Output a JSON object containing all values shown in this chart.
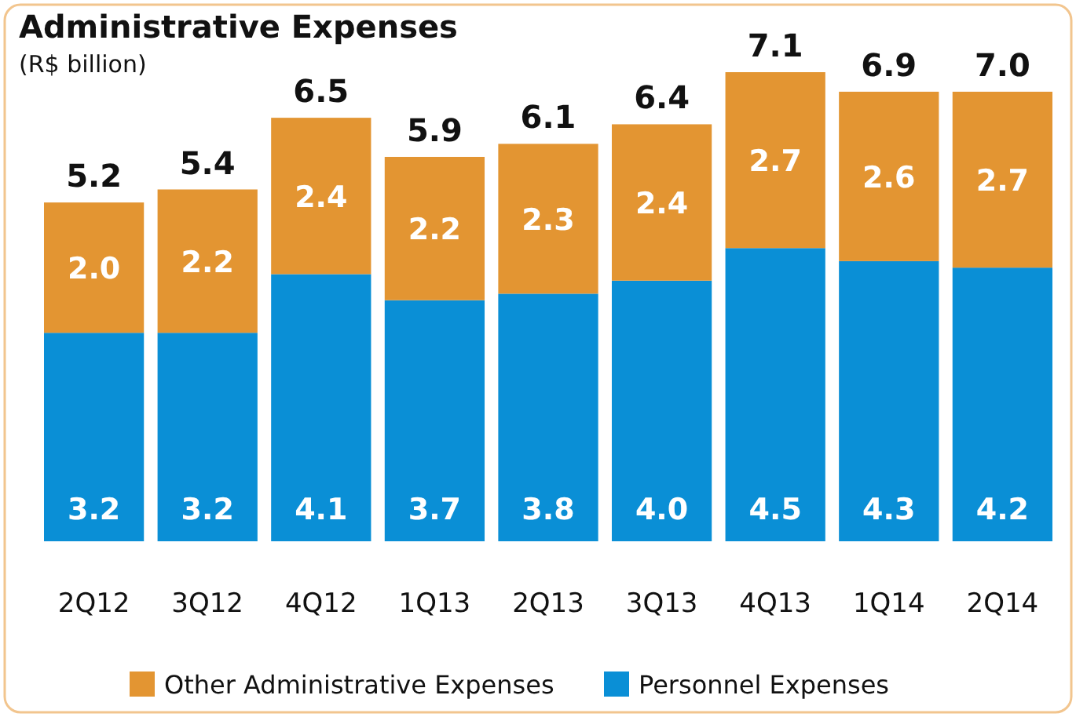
{
  "chart_data": {
    "type": "bar",
    "title": "Administrative Expenses",
    "subtitle": "(R$ billion)",
    "stacked": true,
    "legend": "bottom",
    "categories": [
      "2Q12",
      "3Q12",
      "4Q12",
      "1Q13",
      "2Q13",
      "3Q13",
      "4Q13",
      "1Q14",
      "2Q14"
    ],
    "series": [
      {
        "name": "Personnel Expenses",
        "color": "#0a8fd6",
        "values": [
          3.2,
          3.2,
          4.1,
          3.7,
          3.8,
          4.0,
          4.5,
          4.3,
          4.2
        ],
        "value_labels": [
          "3.2",
          "3.2",
          "4.1",
          "3.7",
          "3.8",
          "4.0",
          "4.5",
          "4.3",
          "4.2"
        ]
      },
      {
        "name": "Other Administrative Expenses",
        "color": "#e39532",
        "values": [
          2.0,
          2.2,
          2.4,
          2.2,
          2.3,
          2.4,
          2.7,
          2.6,
          2.7
        ],
        "value_labels": [
          "2.0",
          "2.2",
          "2.4",
          "2.2",
          "2.3",
          "2.4",
          "2.7",
          "2.6",
          "2.7"
        ]
      }
    ],
    "totals": [
      "5.2",
      "5.4",
      "6.5",
      "5.9",
      "6.1",
      "6.4",
      "7.1",
      "6.9",
      "7.0"
    ]
  }
}
